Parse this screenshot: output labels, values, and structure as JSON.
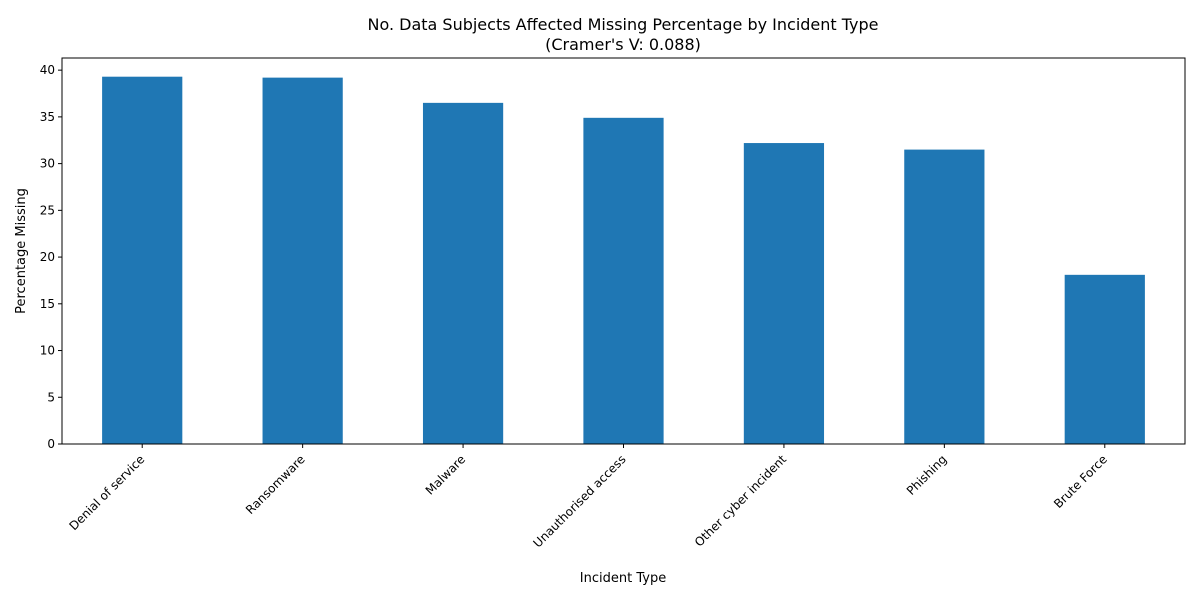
{
  "chart_data": {
    "type": "bar",
    "title_line1": "No. Data Subjects Affected Missing Percentage by Incident Type",
    "title_line2": "(Cramer's V: 0.088)",
    "xlabel": "Incident Type",
    "ylabel": "Percentage Missing",
    "categories": [
      "Denial of service",
      "Ransomware",
      "Malware",
      "Unauthorised access",
      "Other cyber incident",
      "Phishing",
      "Brute Force"
    ],
    "values": [
      39.3,
      39.2,
      36.5,
      34.9,
      32.2,
      31.5,
      18.1
    ],
    "ylim": [
      0,
      41.3
    ],
    "yticks": [
      0,
      5,
      10,
      15,
      20,
      25,
      30,
      35,
      40
    ],
    "grid": false,
    "legend": "none",
    "bar_color": "#1f77b4"
  }
}
